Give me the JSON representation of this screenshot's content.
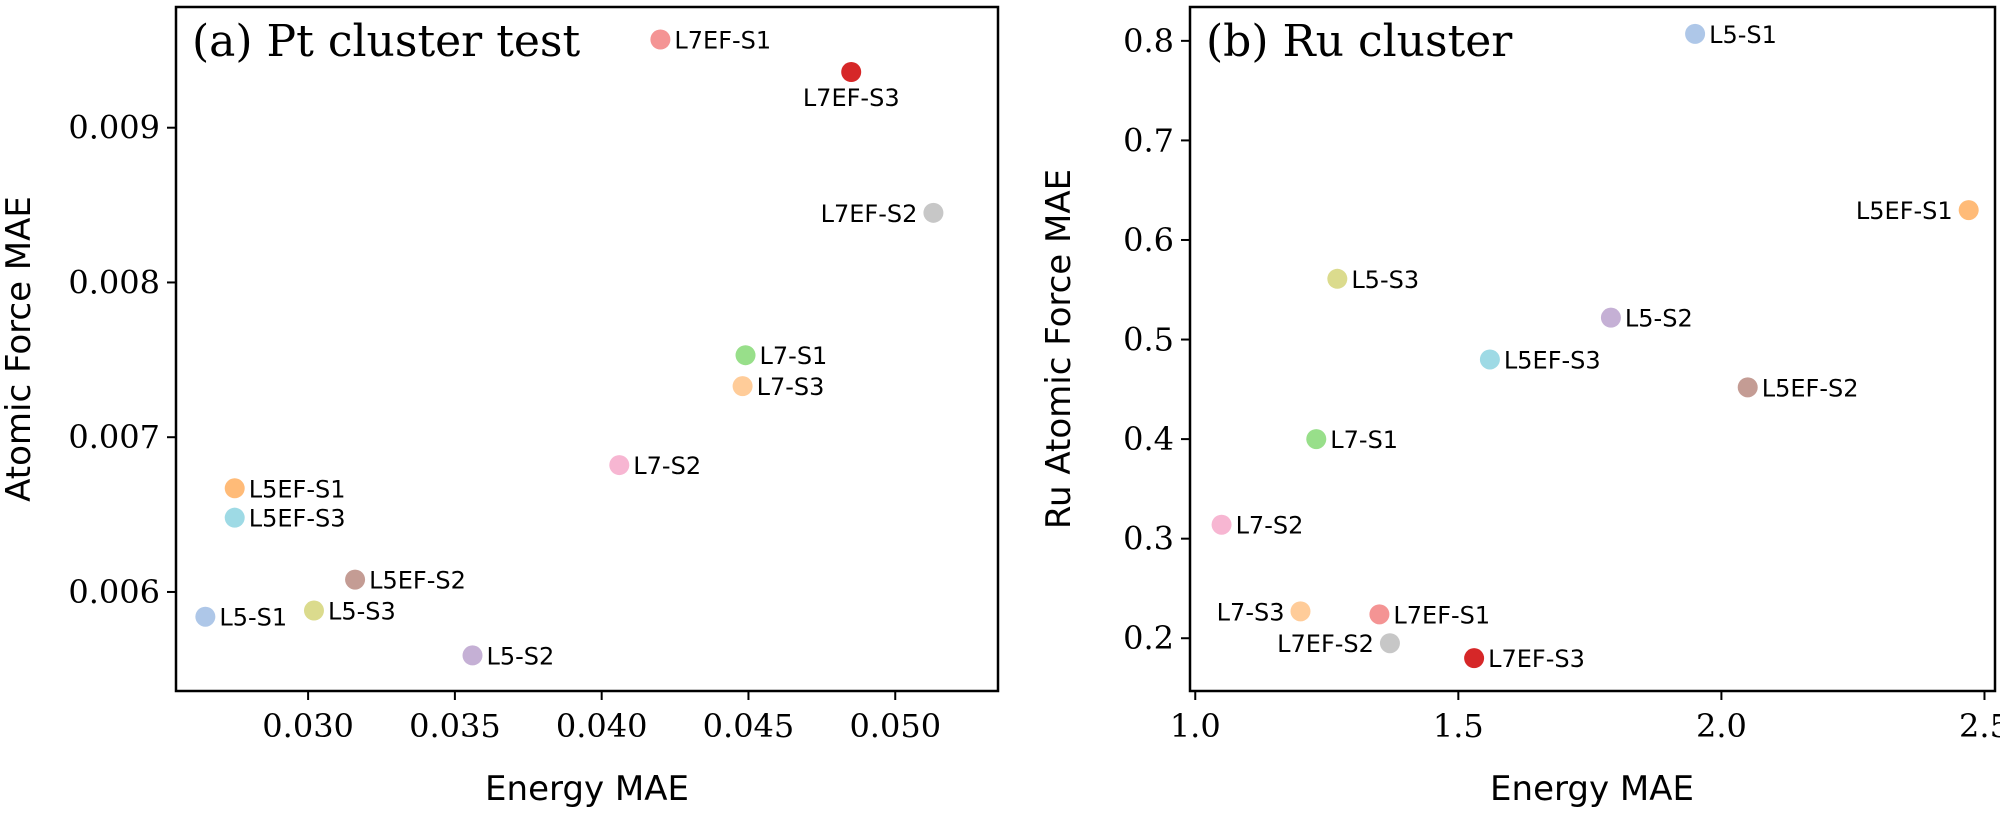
{
  "chart_data": [
    {
      "type": "scatter",
      "title": "(a) Pt cluster test",
      "xlabel": "Energy MAE",
      "ylabel": "Atomic Force MAE",
      "xlim": [
        0.0255,
        0.0535
      ],
      "ylim": [
        0.00536,
        0.00978
      ],
      "xticks": [
        0.03,
        0.035,
        0.04,
        0.045,
        0.05
      ],
      "xtick_labels": [
        "0.030",
        "0.035",
        "0.040",
        "0.045",
        "0.050"
      ],
      "yticks": [
        0.006,
        0.007,
        0.008,
        0.009
      ],
      "ytick_labels": [
        "0.006",
        "0.007",
        "0.008",
        "0.009"
      ],
      "grid": false,
      "points": [
        {
          "label": "L7EF-S1",
          "x": 0.042,
          "y": 0.00957,
          "color": "#f49494",
          "label_side": "right"
        },
        {
          "label": "L7EF-S3",
          "x": 0.0485,
          "y": 0.00936,
          "color": "#d62728",
          "label_side": "below"
        },
        {
          "label": "L7EF-S2",
          "x": 0.0513,
          "y": 0.00845,
          "color": "#c7c7c7",
          "label_side": "left"
        },
        {
          "label": "L7-S1",
          "x": 0.0449,
          "y": 0.00753,
          "color": "#98df8a",
          "label_side": "right"
        },
        {
          "label": "L7-S3",
          "x": 0.0448,
          "y": 0.00733,
          "color": "#ffcc99",
          "label_side": "right"
        },
        {
          "label": "L7-S2",
          "x": 0.0406,
          "y": 0.00682,
          "color": "#f7b6d2",
          "label_side": "right"
        },
        {
          "label": "L5EF-S1",
          "x": 0.0275,
          "y": 0.00667,
          "color": "#ffbb78",
          "label_side": "right"
        },
        {
          "label": "L5EF-S3",
          "x": 0.0275,
          "y": 0.00648,
          "color": "#9edae5",
          "label_side": "right"
        },
        {
          "label": "L5EF-S2",
          "x": 0.0316,
          "y": 0.00608,
          "color": "#c49c94",
          "label_side": "right"
        },
        {
          "label": "L5-S3",
          "x": 0.0302,
          "y": 0.00588,
          "color": "#dbdb8d",
          "label_side": "right"
        },
        {
          "label": "L5-S1",
          "x": 0.0265,
          "y": 0.00584,
          "color": "#aec7e8",
          "label_side": "right"
        },
        {
          "label": "L5-S2",
          "x": 0.0356,
          "y": 0.00559,
          "color": "#c5b0d5",
          "label_side": "right"
        }
      ]
    },
    {
      "type": "scatter",
      "title": "(b) Ru cluster",
      "xlabel": "Energy MAE",
      "ylabel": "Ru Atomic Force MAE",
      "xlim": [
        0.99,
        2.52
      ],
      "ylim": [
        0.147,
        0.834
      ],
      "xticks": [
        1.0,
        1.5,
        2.0,
        2.5
      ],
      "xtick_labels": [
        "1.0",
        "1.5",
        "2.0",
        "2.5"
      ],
      "yticks": [
        0.2,
        0.3,
        0.4,
        0.5,
        0.6,
        0.7,
        0.8
      ],
      "ytick_labels": [
        "0.2",
        "0.3",
        "0.4",
        "0.5",
        "0.6",
        "0.7",
        "0.8"
      ],
      "grid": false,
      "points": [
        {
          "label": "L5-S1",
          "x": 1.95,
          "y": 0.807,
          "color": "#aec7e8",
          "label_side": "right"
        },
        {
          "label": "L5EF-S1",
          "x": 2.47,
          "y": 0.63,
          "color": "#ffbb78",
          "label_side": "left"
        },
        {
          "label": "L5-S3",
          "x": 1.27,
          "y": 0.561,
          "color": "#dbdb8d",
          "label_side": "right"
        },
        {
          "label": "L5-S2",
          "x": 1.79,
          "y": 0.522,
          "color": "#c5b0d5",
          "label_side": "right"
        },
        {
          "label": "L5EF-S3",
          "x": 1.56,
          "y": 0.48,
          "color": "#9edae5",
          "label_side": "right"
        },
        {
          "label": "L5EF-S2",
          "x": 2.05,
          "y": 0.452,
          "color": "#c49c94",
          "label_side": "right"
        },
        {
          "label": "L7-S1",
          "x": 1.23,
          "y": 0.4,
          "color": "#98df8a",
          "label_side": "right"
        },
        {
          "label": "L7-S2",
          "x": 1.05,
          "y": 0.314,
          "color": "#f7b6d2",
          "label_side": "right"
        },
        {
          "label": "L7-S3",
          "x": 1.2,
          "y": 0.227,
          "color": "#ffcc99",
          "label_side": "left"
        },
        {
          "label": "L7EF-S1",
          "x": 1.35,
          "y": 0.224,
          "color": "#f49494",
          "label_side": "right"
        },
        {
          "label": "L7EF-S2",
          "x": 1.37,
          "y": 0.195,
          "color": "#c7c7c7",
          "label_side": "left"
        },
        {
          "label": "L7EF-S3",
          "x": 1.53,
          "y": 0.18,
          "color": "#d62728",
          "label_side": "right"
        }
      ]
    }
  ]
}
